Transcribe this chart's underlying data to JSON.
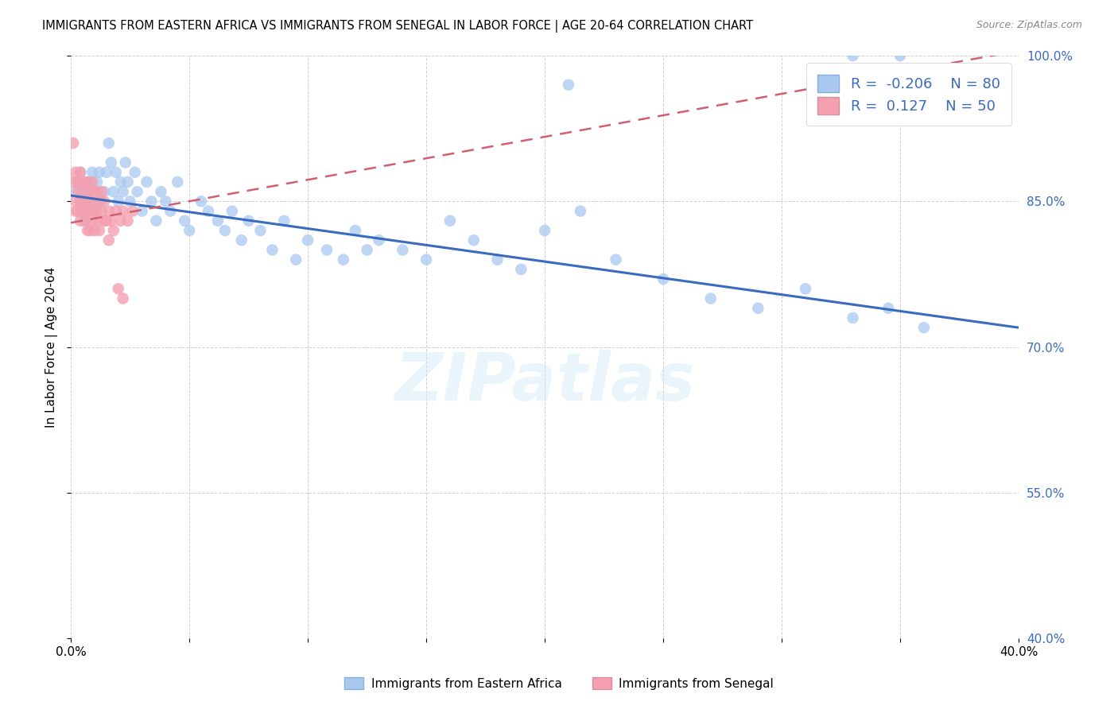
{
  "title": "IMMIGRANTS FROM EASTERN AFRICA VS IMMIGRANTS FROM SENEGAL IN LABOR FORCE | AGE 20-64 CORRELATION CHART",
  "source": "Source: ZipAtlas.com",
  "ylabel": "In Labor Force | Age 20-64",
  "xlim": [
    0.0,
    0.4
  ],
  "ylim": [
    0.4,
    1.0
  ],
  "yticks": [
    0.4,
    0.55,
    0.7,
    0.85,
    1.0
  ],
  "blue_color": "#a8c8f0",
  "pink_color": "#f4a0b0",
  "blue_line_color": "#3a6bbf",
  "pink_line_color": "#d06070",
  "R_blue": -0.206,
  "N_blue": 80,
  "R_pink": 0.127,
  "N_pink": 50,
  "watermark": "ZIPatlas",
  "legend_blue": "Immigrants from Eastern Africa",
  "legend_pink": "Immigrants from Senegal",
  "blue_x": [
    0.002,
    0.003,
    0.004,
    0.004,
    0.005,
    0.005,
    0.006,
    0.006,
    0.007,
    0.007,
    0.008,
    0.008,
    0.009,
    0.009,
    0.01,
    0.01,
    0.011,
    0.011,
    0.012,
    0.013,
    0.014,
    0.015,
    0.016,
    0.017,
    0.018,
    0.019,
    0.02,
    0.021,
    0.022,
    0.023,
    0.024,
    0.025,
    0.027,
    0.028,
    0.03,
    0.032,
    0.034,
    0.036,
    0.038,
    0.04,
    0.042,
    0.045,
    0.048,
    0.05,
    0.055,
    0.058,
    0.062,
    0.065,
    0.068,
    0.072,
    0.075,
    0.08,
    0.085,
    0.09,
    0.095,
    0.1,
    0.108,
    0.115,
    0.12,
    0.125,
    0.13,
    0.14,
    0.15,
    0.16,
    0.17,
    0.18,
    0.19,
    0.2,
    0.215,
    0.23,
    0.25,
    0.27,
    0.29,
    0.31,
    0.33,
    0.345,
    0.36,
    0.33,
    0.35,
    0.21
  ],
  "blue_y": [
    0.86,
    0.87,
    0.85,
    0.88,
    0.84,
    0.86,
    0.83,
    0.87,
    0.85,
    0.86,
    0.84,
    0.87,
    0.85,
    0.88,
    0.84,
    0.86,
    0.85,
    0.87,
    0.88,
    0.85,
    0.86,
    0.88,
    0.91,
    0.89,
    0.86,
    0.88,
    0.85,
    0.87,
    0.86,
    0.89,
    0.87,
    0.85,
    0.88,
    0.86,
    0.84,
    0.87,
    0.85,
    0.83,
    0.86,
    0.85,
    0.84,
    0.87,
    0.83,
    0.82,
    0.85,
    0.84,
    0.83,
    0.82,
    0.84,
    0.81,
    0.83,
    0.82,
    0.8,
    0.83,
    0.79,
    0.81,
    0.8,
    0.79,
    0.82,
    0.8,
    0.81,
    0.8,
    0.79,
    0.83,
    0.81,
    0.79,
    0.78,
    0.82,
    0.84,
    0.79,
    0.77,
    0.75,
    0.74,
    0.76,
    0.73,
    0.74,
    0.72,
    1.0,
    1.0,
    0.97
  ],
  "pink_x": [
    0.001,
    0.001,
    0.002,
    0.002,
    0.002,
    0.003,
    0.003,
    0.003,
    0.004,
    0.004,
    0.004,
    0.005,
    0.005,
    0.005,
    0.006,
    0.006,
    0.006,
    0.007,
    0.007,
    0.007,
    0.008,
    0.008,
    0.008,
    0.009,
    0.009,
    0.009,
    0.01,
    0.01,
    0.01,
    0.011,
    0.011,
    0.011,
    0.012,
    0.012,
    0.013,
    0.013,
    0.014,
    0.014,
    0.015,
    0.016,
    0.016,
    0.017,
    0.018,
    0.019,
    0.02,
    0.021,
    0.022,
    0.024,
    0.026,
    0.022
  ],
  "pink_y": [
    0.87,
    0.91,
    0.85,
    0.88,
    0.84,
    0.87,
    0.84,
    0.86,
    0.83,
    0.85,
    0.88,
    0.84,
    0.87,
    0.85,
    0.83,
    0.86,
    0.84,
    0.82,
    0.85,
    0.87,
    0.84,
    0.82,
    0.86,
    0.83,
    0.85,
    0.87,
    0.84,
    0.86,
    0.82,
    0.84,
    0.86,
    0.83,
    0.85,
    0.82,
    0.84,
    0.86,
    0.83,
    0.85,
    0.83,
    0.84,
    0.81,
    0.83,
    0.82,
    0.84,
    0.76,
    0.83,
    0.84,
    0.83,
    0.84,
    0.75
  ],
  "blue_line_x0": 0.0,
  "blue_line_y0": 0.856,
  "blue_line_x1": 0.4,
  "blue_line_y1": 0.72,
  "pink_line_x0": 0.0,
  "pink_line_y0": 0.828,
  "pink_line_x1": 0.4,
  "pink_line_y1": 1.005
}
